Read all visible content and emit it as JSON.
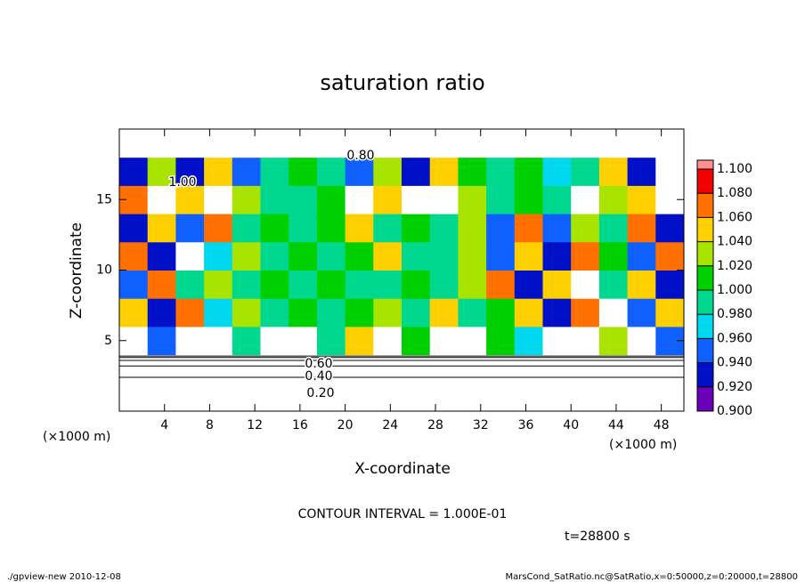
{
  "chart_data": {
    "type": "heatmap",
    "title": "saturation ratio",
    "x_label": "X-coordinate",
    "y_label": "Z-coordinate",
    "x_unit_label": "(×1000 m)",
    "contour_interval": "CONTOUR INTERVAL = 1.000E-01",
    "time_label": "t=28800 s",
    "footer_left": "./gpview-new  2010-12-08",
    "footer_right": "MarsCond_SatRatio.nc@SatRatio,x=0:50000,z=0:20000,t=28800",
    "contour_labels": [
      "0.20",
      "0.40",
      "0.60",
      "0.80",
      "1.00"
    ],
    "xlim": [
      0,
      50
    ],
    "ylim": [
      0,
      20
    ],
    "xticks": [
      4,
      8,
      12,
      16,
      20,
      24,
      28,
      32,
      36,
      40,
      44,
      48
    ],
    "yticks": [
      5,
      10,
      15
    ],
    "x": [
      1.25,
      3.75,
      6.25,
      8.75,
      11.25,
      13.75,
      16.25,
      18.75,
      21.25,
      23.75,
      26.25,
      28.75,
      31.25,
      33.75,
      36.25,
      38.75,
      41.25,
      43.75,
      46.25,
      48.75
    ],
    "y": [
      1,
      3,
      5,
      7,
      9,
      11,
      13,
      15,
      17,
      19
    ],
    "z": [
      [
        0.25,
        0.25,
        0.25,
        0.25,
        0.25,
        0.25,
        0.25,
        0.25,
        0.25,
        0.25,
        0.25,
        0.25,
        0.25,
        0.25,
        0.25,
        0.25,
        0.25,
        0.25,
        0.25,
        0.25
      ],
      [
        0.6,
        0.6,
        0.6,
        0.6,
        0.6,
        0.6,
        0.6,
        0.6,
        0.6,
        0.6,
        0.6,
        0.6,
        0.6,
        0.6,
        0.6,
        0.6,
        0.6,
        0.6,
        0.6,
        0.6
      ],
      [
        1.12,
        0.95,
        1.12,
        1.12,
        1.0,
        1.12,
        1.12,
        1.0,
        1.06,
        1.12,
        1.02,
        1.12,
        1.12,
        1.01,
        0.98,
        1.12,
        1.12,
        1.04,
        1.12,
        0.95
      ],
      [
        1.06,
        0.94,
        1.08,
        0.97,
        1.04,
        1.0,
        1.01,
        1.0,
        1.01,
        1.03,
        1.0,
        1.05,
        1.0,
        1.02,
        1.06,
        0.93,
        1.08,
        1.12,
        0.96,
        1.05
      ],
      [
        0.95,
        1.08,
        1.0,
        1.03,
        1.0,
        1.01,
        1.0,
        1.02,
        0.99,
        1.0,
        1.01,
        1.0,
        1.04,
        1.07,
        0.94,
        1.05,
        1.12,
        1.0,
        1.06,
        0.93
      ],
      [
        1.07,
        0.94,
        1.12,
        0.97,
        1.03,
        1.0,
        1.02,
        1.0,
        1.01,
        1.05,
        1.0,
        1.0,
        1.03,
        0.96,
        1.06,
        0.94,
        1.08,
        1.02,
        0.95,
        1.07
      ],
      [
        0.93,
        1.06,
        0.95,
        1.08,
        1.0,
        1.01,
        1.0,
        1.01,
        1.06,
        1.0,
        1.02,
        1.0,
        1.04,
        0.95,
        1.07,
        0.96,
        1.04,
        1.0,
        1.08,
        0.94
      ],
      [
        1.08,
        1.12,
        1.05,
        1.12,
        1.03,
        1.0,
        1.0,
        1.02,
        1.12,
        1.05,
        1.12,
        1.12,
        1.03,
        1.0,
        1.01,
        1.0,
        1.12,
        1.03,
        1.05,
        1.12
      ],
      [
        0.93,
        1.04,
        0.94,
        1.06,
        0.96,
        1.0,
        1.01,
        1.0,
        0.95,
        1.04,
        0.94,
        1.06,
        1.02,
        1.0,
        1.01,
        0.98,
        1.0,
        1.05,
        0.94,
        1.12
      ],
      [
        0.85,
        0.85,
        0.85,
        0.85,
        0.85,
        0.85,
        0.85,
        0.85,
        0.85,
        0.85,
        0.85,
        0.85,
        0.85,
        0.85,
        0.85,
        0.85,
        0.85,
        0.85,
        0.85,
        0.85
      ]
    ],
    "colorbar_ticks": [
      {
        "value": 0.9,
        "label": "0.900"
      },
      {
        "value": 0.92,
        "label": "0.920"
      },
      {
        "value": 0.94,
        "label": "0.940"
      },
      {
        "value": 0.96,
        "label": "0.960"
      },
      {
        "value": 0.98,
        "label": "0.980"
      },
      {
        "value": 1.0,
        "label": "1.000"
      },
      {
        "value": 1.02,
        "label": "1.020"
      },
      {
        "value": 1.04,
        "label": "1.040"
      },
      {
        "value": 1.06,
        "label": "1.060"
      },
      {
        "value": 1.08,
        "label": "1.080"
      },
      {
        "value": 1.1,
        "label": "1.100"
      }
    ],
    "colors": [
      "#6a00b8",
      "#0010c8",
      "#1060ff",
      "#00d8f0",
      "#00d890",
      "#00d000",
      "#a8e400",
      "#ffd000",
      "#ff7000",
      "#f00000"
    ],
    "colorbar_top_color": "#ff9090"
  }
}
